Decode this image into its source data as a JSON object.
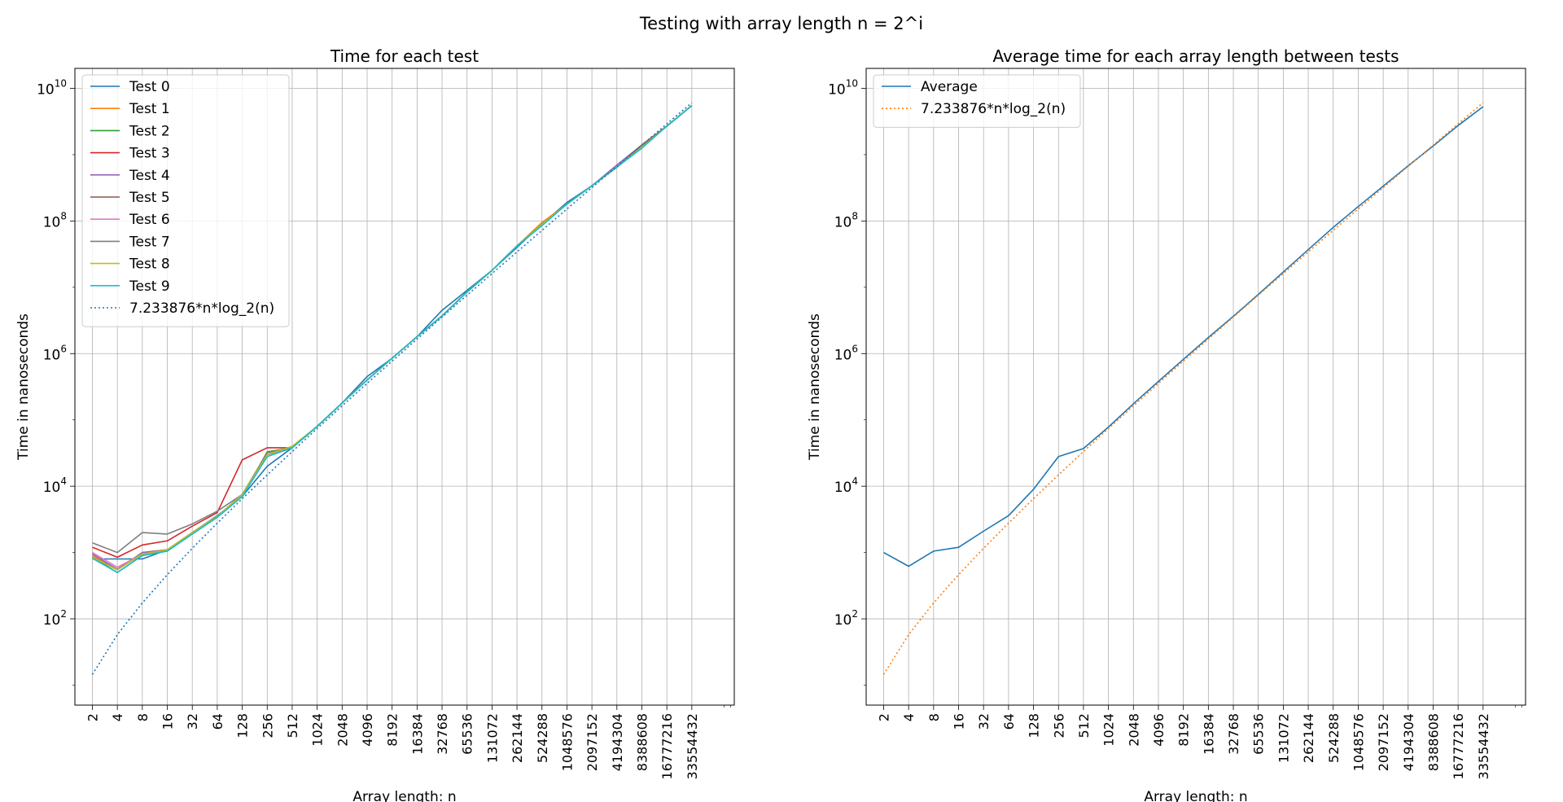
{
  "figure": {
    "suptitle": "Testing with array length n = 2^i"
  },
  "chart_data": [
    {
      "type": "line",
      "title": "Time for each test",
      "xlabel": "Array length: n",
      "ylabel": "Time in nanoseconds",
      "yscale": "log",
      "xscale": "log2",
      "ylim": [
        5,
        20000000000
      ],
      "y_ticks": [
        {
          "base": "10",
          "exp": "2",
          "value": 100
        },
        {
          "base": "10",
          "exp": "4",
          "value": 10000
        },
        {
          "base": "10",
          "exp": "6",
          "value": 1000000
        },
        {
          "base": "10",
          "exp": "8",
          "value": 100000000
        },
        {
          "base": "10",
          "exp": "10",
          "value": 10000000000
        }
      ],
      "x": [
        "2",
        "4",
        "8",
        "16",
        "32",
        "64",
        "128",
        "256",
        "512",
        "1024",
        "2048",
        "4096",
        "8192",
        "16384",
        "32768",
        "65536",
        "131072",
        "262144",
        "524288",
        "1048576",
        "2097152",
        "4194304",
        "8388608",
        "16777216",
        "33554432"
      ],
      "grid": true,
      "legend_position": "upper left",
      "series": [
        {
          "name": "Test 0",
          "color": "#1f77b4",
          "style": "solid",
          "values": [
            800,
            800,
            800,
            1100,
            2000,
            3600,
            7000,
            20000,
            38000,
            80000,
            180000,
            450000,
            850000,
            1800000,
            4500000,
            9000000,
            18000000,
            40000000,
            90000000,
            190000000,
            340000000,
            650000000,
            1300000000,
            2700000000,
            5500000000
          ]
        },
        {
          "name": "Test 1",
          "color": "#ff7f0e",
          "style": "solid",
          "values": [
            900,
            550,
            1000,
            1100,
            2000,
            3500,
            7500,
            28000,
            38000,
            80000,
            180000,
            400000,
            850000,
            1800000,
            3700000,
            8500000,
            18000000,
            42000000,
            95000000,
            180000000,
            340000000,
            650000000,
            1300000000,
            2700000000,
            5500000000
          ]
        },
        {
          "name": "Test 2",
          "color": "#2ca02c",
          "style": "solid",
          "values": [
            850,
            500,
            900,
            1050,
            1900,
            3400,
            7000,
            33000,
            38000,
            80000,
            180000,
            400000,
            850000,
            1800000,
            3700000,
            8500000,
            18000000,
            42000000,
            90000000,
            180000000,
            340000000,
            650000000,
            1300000000,
            2700000000,
            5500000000
          ]
        },
        {
          "name": "Test 3",
          "color": "#d62728",
          "style": "solid",
          "values": [
            1200,
            850,
            1300,
            1500,
            2500,
            4000,
            25000,
            38000,
            38000,
            80000,
            180000,
            400000,
            850000,
            1800000,
            3700000,
            8500000,
            18000000,
            42000000,
            90000000,
            180000000,
            340000000,
            650000000,
            1300000000,
            2700000000,
            5500000000
          ]
        },
        {
          "name": "Test 4",
          "color": "#9467bd",
          "style": "solid",
          "values": [
            950,
            560,
            1000,
            1100,
            2000,
            3500,
            7500,
            30000,
            38000,
            80000,
            180000,
            400000,
            850000,
            1800000,
            3700000,
            8500000,
            18000000,
            42000000,
            90000000,
            180000000,
            340000000,
            700000000,
            1400000000,
            2700000000,
            5500000000
          ]
        },
        {
          "name": "Test 5",
          "color": "#8c564b",
          "style": "solid",
          "values": [
            850,
            550,
            950,
            1100,
            2000,
            3500,
            7500,
            30000,
            38000,
            80000,
            180000,
            400000,
            850000,
            1800000,
            3700000,
            8500000,
            18000000,
            42000000,
            90000000,
            180000000,
            340000000,
            650000000,
            1400000000,
            2700000000,
            5500000000
          ]
        },
        {
          "name": "Test 6",
          "color": "#e377c2",
          "style": "solid",
          "values": [
            1000,
            600,
            950,
            1100,
            2000,
            3500,
            7500,
            30000,
            38000,
            80000,
            180000,
            400000,
            850000,
            1800000,
            3700000,
            8500000,
            18000000,
            42000000,
            90000000,
            180000000,
            340000000,
            650000000,
            1300000000,
            2700000000,
            5500000000
          ]
        },
        {
          "name": "Test 7",
          "color": "#7f7f7f",
          "style": "solid",
          "values": [
            1400,
            1000,
            2000,
            1900,
            2700,
            4200,
            7500,
            32000,
            38000,
            80000,
            180000,
            400000,
            850000,
            1800000,
            3700000,
            8500000,
            18000000,
            42000000,
            90000000,
            180000000,
            340000000,
            650000000,
            1300000000,
            2700000000,
            5500000000
          ]
        },
        {
          "name": "Test 8",
          "color": "#bcbd22",
          "style": "solid",
          "values": [
            850,
            550,
            950,
            1100,
            2000,
            3500,
            7500,
            30000,
            40000,
            80000,
            180000,
            400000,
            850000,
            1800000,
            3700000,
            8500000,
            18000000,
            42000000,
            90000000,
            180000000,
            340000000,
            650000000,
            1300000000,
            2700000000,
            5500000000
          ]
        },
        {
          "name": "Test 9",
          "color": "#17becf",
          "style": "solid",
          "values": [
            820,
            500,
            900,
            1050,
            1900,
            3400,
            7000,
            28000,
            38000,
            80000,
            180000,
            400000,
            850000,
            1800000,
            3700000,
            8500000,
            18000000,
            42000000,
            85000000,
            180000000,
            340000000,
            650000000,
            1250000000,
            2700000000,
            5500000000
          ]
        },
        {
          "name": "7.233876*n*log_2(n)",
          "color": "#1f77b4",
          "style": "dotted",
          "values": [
            14.47,
            57.87,
            173.6,
            462.97,
            1157.42,
            2777.81,
            6481.55,
            14814.98,
            33333.7,
            74073.89,
            162962.6,
            355554.7,
            770368.2,
            1659253,
            3555548,
            7585089,
            16118950,
            34132940,
            72056200,
            151697400,
            318563400,
            667442300,
            1395743000,
            2912790000,
            6068070000
          ]
        }
      ]
    },
    {
      "type": "line",
      "title": "Average time for each array length between tests",
      "xlabel": "Array length: n",
      "ylabel": "Time in nanoseconds",
      "yscale": "log",
      "xscale": "log2",
      "ylim": [
        5,
        20000000000
      ],
      "y_ticks": [
        {
          "base": "10",
          "exp": "2",
          "value": 100
        },
        {
          "base": "10",
          "exp": "4",
          "value": 10000
        },
        {
          "base": "10",
          "exp": "6",
          "value": 1000000
        },
        {
          "base": "10",
          "exp": "8",
          "value": 100000000
        },
        {
          "base": "10",
          "exp": "10",
          "value": 10000000000
        }
      ],
      "x": [
        "2",
        "4",
        "8",
        "16",
        "32",
        "64",
        "128",
        "256",
        "512",
        "1024",
        "2048",
        "4096",
        "8192",
        "16384",
        "32768",
        "65536",
        "131072",
        "262144",
        "524288",
        "1048576",
        "2097152",
        "4194304",
        "8388608",
        "16777216",
        "33554432"
      ],
      "grid": true,
      "legend_position": "upper left",
      "series": [
        {
          "name": "Average",
          "color": "#1f77b4",
          "style": "solid",
          "values": [
            1000,
            620,
            1050,
            1200,
            2100,
            3600,
            9000,
            28000,
            37000,
            78000,
            175000,
            380000,
            820000,
            1750000,
            3650000,
            7800000,
            17000000,
            37000000,
            80000000,
            165000000,
            335000000,
            680000000,
            1350000000,
            2750000000,
            5300000000
          ]
        },
        {
          "name": "7.233876*n*log_2(n)",
          "color": "#ff7f0e",
          "style": "dotted",
          "values": [
            14.47,
            57.87,
            173.6,
            462.97,
            1157.42,
            2777.81,
            6481.55,
            14814.98,
            33333.7,
            74073.89,
            162962.6,
            355554.7,
            770368.2,
            1659253,
            3555548,
            7585089,
            16118950,
            34132940,
            72056200,
            151697400,
            318563400,
            667442300,
            1395743000,
            2912790000,
            6068070000
          ]
        }
      ]
    }
  ]
}
